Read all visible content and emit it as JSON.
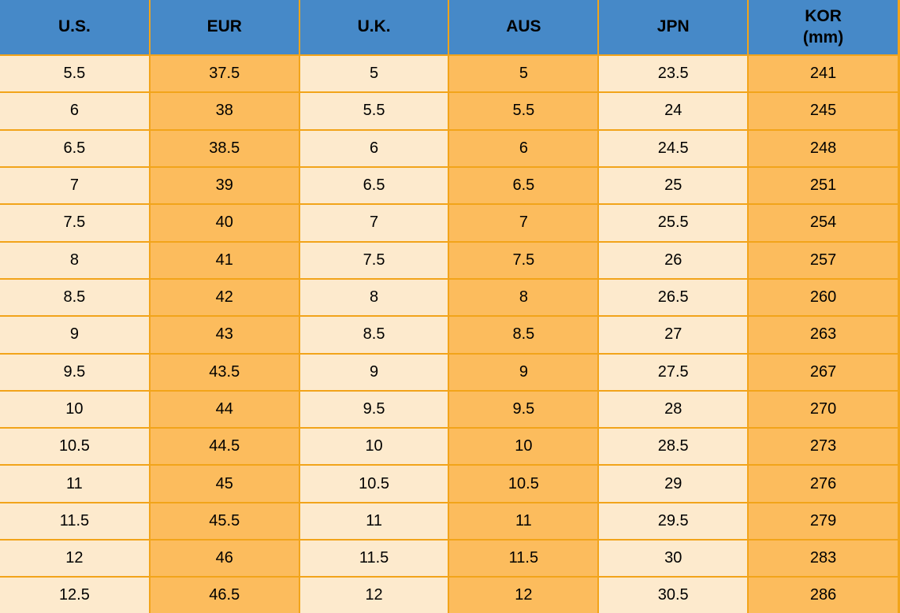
{
  "chart_data": {
    "type": "table",
    "columns": [
      {
        "label": "U.S."
      },
      {
        "label": "EUR"
      },
      {
        "label": "U.K."
      },
      {
        "label": "AUS"
      },
      {
        "label": "JPN"
      },
      {
        "label": "KOR",
        "sublabel": "(mm)"
      }
    ],
    "rows": [
      [
        "5.5",
        "37.5",
        "5",
        "5",
        "23.5",
        "241"
      ],
      [
        "6",
        "38",
        "5.5",
        "5.5",
        "24",
        "245"
      ],
      [
        "6.5",
        "38.5",
        "6",
        "6",
        "24.5",
        "248"
      ],
      [
        "7",
        "39",
        "6.5",
        "6.5",
        "25",
        "251"
      ],
      [
        "7.5",
        "40",
        "7",
        "7",
        "25.5",
        "254"
      ],
      [
        "8",
        "41",
        "7.5",
        "7.5",
        "26",
        "257"
      ],
      [
        "8.5",
        "42",
        "8",
        "8",
        "26.5",
        "260"
      ],
      [
        "9",
        "43",
        "8.5",
        "8.5",
        "27",
        "263"
      ],
      [
        "9.5",
        "43.5",
        "9",
        "9",
        "27.5",
        "267"
      ],
      [
        "10",
        "44",
        "9.5",
        "9.5",
        "28",
        "270"
      ],
      [
        "10.5",
        "44.5",
        "10",
        "10",
        "28.5",
        "273"
      ],
      [
        "11",
        "45",
        "10.5",
        "10.5",
        "29",
        "276"
      ],
      [
        "11.5",
        "45.5",
        "11",
        "11",
        "29.5",
        "279"
      ],
      [
        "12",
        "46",
        "11.5",
        "11.5",
        "30",
        "283"
      ],
      [
        "12.5",
        "46.5",
        "12",
        "12",
        "30.5",
        "286"
      ]
    ],
    "layout": {
      "grid": true,
      "header_position": "top",
      "column_fill_pattern": [
        "cream",
        "orange",
        "cream",
        "orange",
        "cream",
        "orange"
      ]
    }
  },
  "style": {
    "header_bg": "#4689C8",
    "header_text": "#000000",
    "cell_text": "#000000",
    "border_color": "#F2A41A",
    "col_colors": [
      "#FDEACD",
      "#FCBC5D",
      "#FDEACD",
      "#FCBC5D",
      "#FDEACD",
      "#FCBC5D"
    ]
  }
}
